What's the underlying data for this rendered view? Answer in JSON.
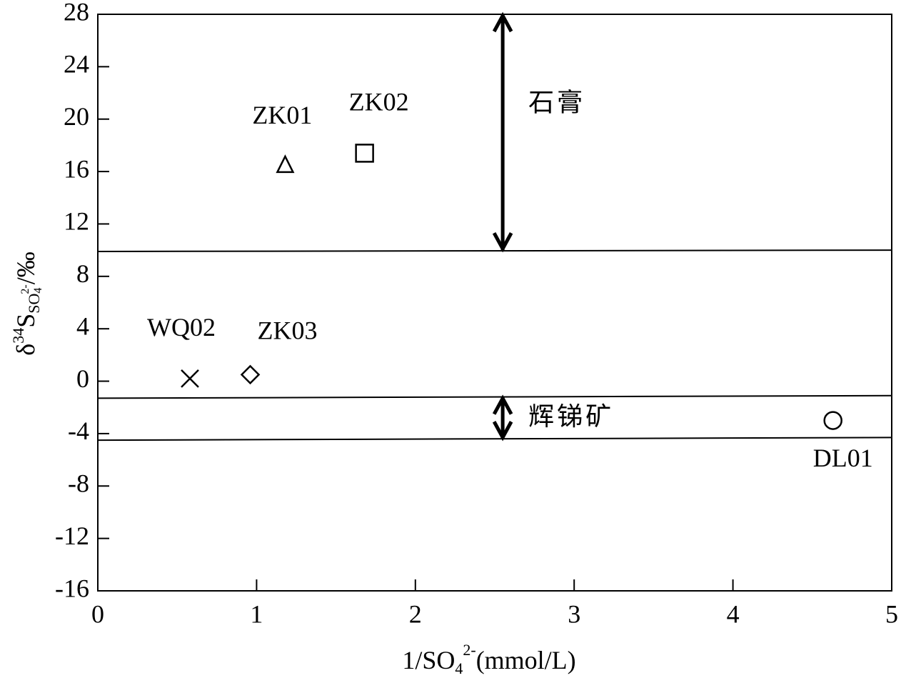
{
  "chart_data": {
    "type": "scatter",
    "xlabel": {
      "main": "1/SO",
      "sub": "4",
      "sup": "2-",
      "unit": "(mmol/L)"
    },
    "ylabel": {
      "delta": "δ",
      "sup": "34",
      "main": "S",
      "sub": "SO",
      "subsub": "4",
      "subsup": "2-",
      "unit": "/‰"
    },
    "xlim": [
      0,
      5
    ],
    "ylim": [
      -16,
      28
    ],
    "xticks": [
      0,
      1,
      2,
      3,
      4,
      5
    ],
    "yticks": [
      -16,
      -12,
      -8,
      -4,
      0,
      4,
      8,
      12,
      16,
      20,
      24,
      28
    ],
    "series": [
      {
        "name": "ZK01",
        "marker": "triangle",
        "color": "#000000",
        "x": [
          1.18
        ],
        "values": [
          16.5
        ]
      },
      {
        "name": "ZK02",
        "marker": "square",
        "color": "#000000",
        "x": [
          1.68
        ],
        "values": [
          17.4
        ]
      },
      {
        "name": "WQ02",
        "marker": "x",
        "color": "#000000",
        "x": [
          0.58
        ],
        "values": [
          0.2
        ]
      },
      {
        "name": "ZK03",
        "marker": "diamond",
        "color": "#000000",
        "x": [
          0.96
        ],
        "values": [
          0.5
        ]
      },
      {
        "name": "DL01",
        "marker": "circle",
        "color": "#000000",
        "x": [
          4.63
        ],
        "values": [
          -3.0
        ]
      }
    ],
    "reference_lines": [
      {
        "x": [
          0,
          5
        ],
        "y": [
          9.9,
          10.0
        ]
      },
      {
        "x": [
          0,
          5
        ],
        "y": [
          -1.3,
          -1.1
        ]
      },
      {
        "x": [
          0,
          5
        ],
        "y": [
          -4.5,
          -4.3
        ]
      }
    ],
    "ranges": [
      {
        "label": "石膏",
        "x": 2.55,
        "y": [
          28,
          10
        ]
      },
      {
        "label": "辉锑矿",
        "x": 2.55,
        "y": [
          -1.2,
          -4.4
        ]
      }
    ]
  }
}
